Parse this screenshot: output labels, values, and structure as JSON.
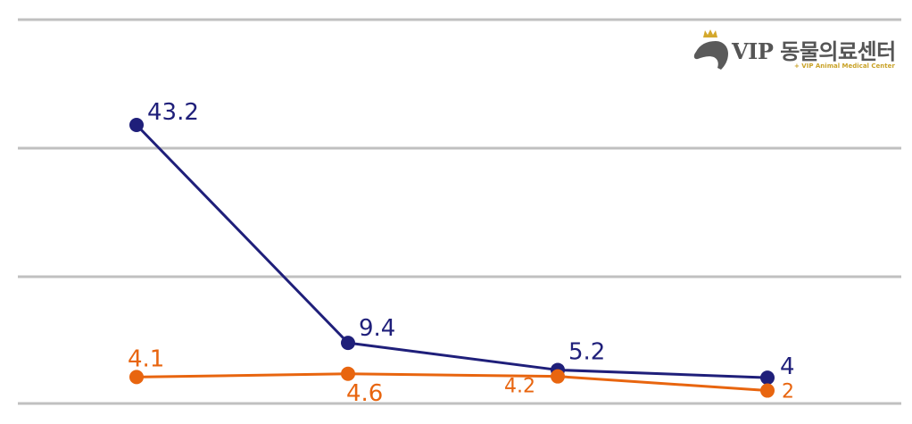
{
  "brand": {
    "name": "VIP 동물의료센터",
    "tagline": "+ VIP Animal Medical Center",
    "icon": "dog-head-crown-icon",
    "dog_color": "#5a5a5a",
    "crown_color": "#d4a82c"
  },
  "chart_data": {
    "type": "line",
    "title": "",
    "xlabel": "",
    "ylabel": "",
    "categories": [
      "",
      "",
      "",
      ""
    ],
    "ylim": [
      0,
      45
    ],
    "grid": true,
    "series": [
      {
        "values": [
          43.2,
          9.4,
          5.2,
          4
        ],
        "labels": [
          "43.2",
          "9.4",
          "5.2",
          "4"
        ],
        "color": "#1f1f7a"
      },
      {
        "values": [
          4.1,
          4.6,
          4.2,
          2
        ],
        "labels": [
          "4.1",
          "4.6",
          "4.2",
          "2"
        ],
        "color": "#e8650f"
      }
    ]
  }
}
